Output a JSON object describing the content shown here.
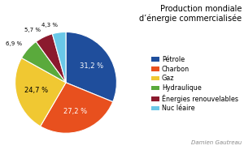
{
  "chart_data": {
    "type": "pie",
    "title": "Production mondiale\nd’énergie commercialisée",
    "categories": [
      "Pétrole",
      "Charbon",
      "Gaz",
      "Hydraulique",
      "Énergies renouvelables",
      "Nuc léaire"
    ],
    "values": [
      31.2,
      27.2,
      24.7,
      6.9,
      5.7,
      4.3
    ],
    "value_labels": [
      "31,2 %",
      "27,2 %",
      "24,7 %",
      "6,9 %",
      "5,7 %",
      "4,3 %"
    ],
    "colors": [
      "#1f4e9c",
      "#e8501e",
      "#f0c832",
      "#5aaa3c",
      "#8b1a2e",
      "#6ac8e8"
    ],
    "data_labels": true,
    "legend": "center right",
    "annotations": [
      "Damien Gautreau"
    ]
  }
}
